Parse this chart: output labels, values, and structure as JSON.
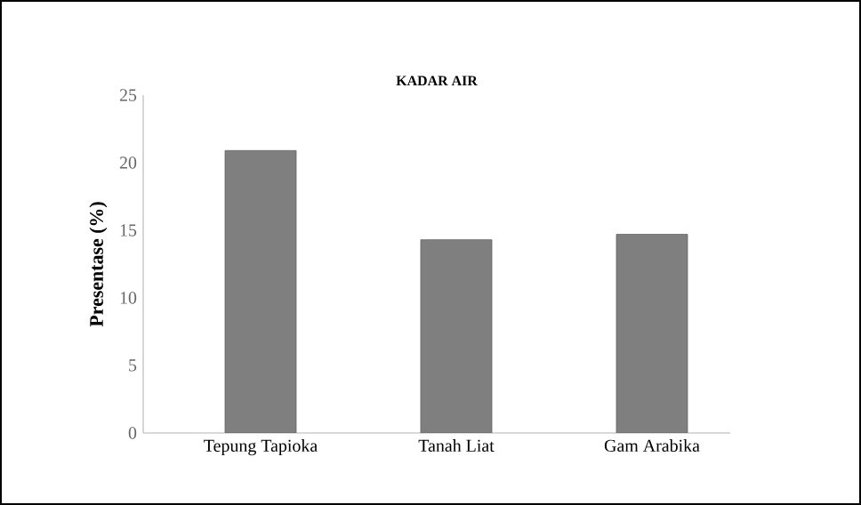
{
  "chart_data": {
    "type": "bar",
    "title": "KADAR AIR",
    "ylabel": "Presentase (%)",
    "categories": [
      "Tepung Tapioka",
      "Tanah Liat",
      "Gam Arabika"
    ],
    "values": [
      20.9,
      14.3,
      14.7
    ],
    "color": "#7f7f7f",
    "ylim": [
      0,
      25
    ],
    "yticks": [
      0,
      5,
      10,
      15,
      20,
      25
    ],
    "grid": false
  }
}
